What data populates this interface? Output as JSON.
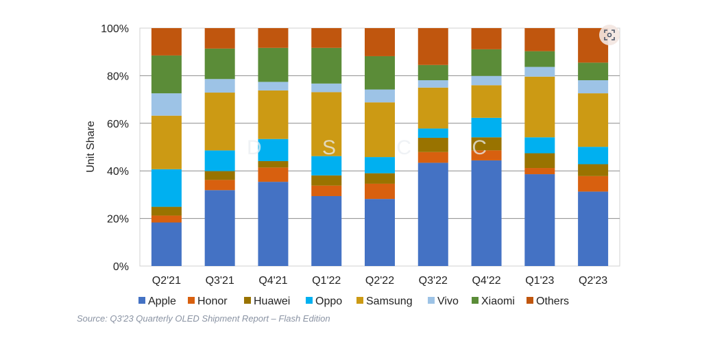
{
  "chart_data": {
    "type": "bar",
    "stacked": true,
    "ylabel": "Unit Share",
    "xlabel": "",
    "ylim": [
      0,
      100
    ],
    "yticks": [
      "0%",
      "20%",
      "40%",
      "60%",
      "80%",
      "100%"
    ],
    "grid": true,
    "legend_placement": "bottom",
    "categories": [
      "Q2'21",
      "Q3'21",
      "Q4'21",
      "Q1'22",
      "Q2'22",
      "Q3'22",
      "Q4'22",
      "Q1'23",
      "Q2'23"
    ],
    "series": [
      {
        "name": "Apple",
        "color": "#4472C4",
        "values": [
          18.3,
          31.9,
          35.4,
          29.4,
          28.2,
          43.4,
          44.4,
          38.6,
          31.3
        ]
      },
      {
        "name": "Honor",
        "color": "#D8600F",
        "values": [
          2.9,
          4.3,
          6.0,
          4.4,
          6.4,
          4.5,
          4.2,
          2.6,
          6.5
        ]
      },
      {
        "name": "Huawei",
        "color": "#997300",
        "values": [
          3.7,
          3.7,
          2.7,
          4.3,
          4.4,
          6.0,
          5.5,
          6.2,
          5.0
        ]
      },
      {
        "name": "Oppo",
        "color": "#00B0F0",
        "values": [
          15.8,
          8.7,
          9.3,
          8.1,
          6.8,
          3.9,
          8.2,
          6.7,
          7.3
        ]
      },
      {
        "name": "Samsung",
        "color": "#CC9A14",
        "values": [
          22.5,
          24.3,
          20.4,
          26.9,
          23.0,
          17.2,
          13.7,
          25.5,
          22.5
        ]
      },
      {
        "name": "Vivo",
        "color": "#9DC3E6",
        "values": [
          9.4,
          5.7,
          3.6,
          3.6,
          5.4,
          3.1,
          3.9,
          4.1,
          5.5
        ]
      },
      {
        "name": "Xiaomi",
        "color": "#5B8C38",
        "values": [
          15.9,
          12.8,
          14.3,
          15.0,
          14.0,
          6.4,
          11.2,
          6.6,
          7.4
        ]
      },
      {
        "name": "Others",
        "color": "#C0560E",
        "values": [
          11.5,
          8.6,
          8.3,
          8.3,
          11.8,
          15.5,
          8.9,
          9.7,
          14.5
        ]
      }
    ]
  },
  "source": "Source: Q3'23 Quarterly OLED Shipment Report – Flash Edition",
  "watermark": "D S C C",
  "icons": {
    "visual_search": "lens-scan-icon"
  }
}
